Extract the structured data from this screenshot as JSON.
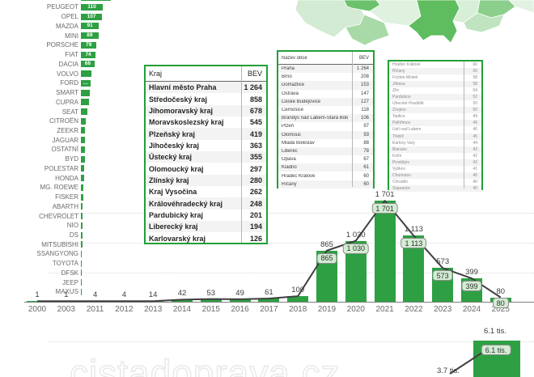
{
  "watermark": "cistadoprava.cz",
  "colors": {
    "bar_green": "#2ea043",
    "badge_bg": "#d3ecd3",
    "line": "#404040",
    "table_border": "#21a038",
    "map": [
      "#d2ebd2",
      "#6cc26c",
      "#dff1df",
      "#a8daa8",
      "#5fbc5f",
      "#d7eed7",
      "#8ccf8c",
      "#bfe4bf",
      "#e2f2e2"
    ]
  },
  "chart_data": [
    {
      "type": "bar",
      "name": "bev-by-brand",
      "orientation": "horizontal",
      "top_row_clipped": true,
      "categories": [
        "",
        "PEUGEOT",
        "OPEL",
        "MAZDA",
        "MINI",
        "PORSCHE",
        "FIAT",
        "DACIA",
        "VOLVO",
        "FORD",
        "SMART",
        "CUPRA",
        "SEAT",
        "CITROËN",
        "ZEEKR",
        "JAGUAR",
        "OSTATNÍ",
        "BYD",
        "POLESTAR",
        "HONDA",
        "MG. ROEWE",
        "FISKER",
        "ABARTH",
        "CHEVROLET",
        "NIO",
        "DS",
        "MITSUBISHI",
        "SSANGYONG",
        "TOYOTA",
        "DFSK",
        "JEEP",
        "MAXUS"
      ],
      "values": [
        150,
        110,
        107,
        91,
        89,
        79,
        74,
        68,
        55,
        48,
        44,
        40,
        32,
        26,
        22,
        21,
        20,
        19,
        17,
        15,
        13,
        11,
        10,
        9,
        8,
        8,
        7,
        6,
        5,
        4,
        4,
        3
      ],
      "displayed_values": [
        "",
        "110",
        "107",
        "91",
        "89",
        "79",
        "74",
        "68",
        "",
        "…",
        "",
        "",
        "",
        "",
        "",
        "",
        "",
        "",
        "",
        "",
        "",
        "",
        "",
        "",
        "",
        "",
        "",
        "",
        "",
        "",
        "",
        ""
      ]
    },
    {
      "type": "table",
      "name": "bev-by-region",
      "headers": [
        "Kraj",
        "BEV"
      ],
      "rows": [
        [
          "Hlavní město Praha",
          "1 264"
        ],
        [
          "Středočeský kraj",
          "858"
        ],
        [
          "Jihomoravský kraj",
          "678"
        ],
        [
          "Moravskoslezský kraj",
          "545"
        ],
        [
          "Plzeňský kraj",
          "419"
        ],
        [
          "Jihočeský kraj",
          "363"
        ],
        [
          "Ústecký kraj",
          "355"
        ],
        [
          "Olomoucký kraj",
          "297"
        ],
        [
          "Zlínský kraj",
          "280"
        ],
        [
          "Kraj Vysočina",
          "262"
        ],
        [
          "Královéhradecký kraj",
          "248"
        ],
        [
          "Pardubický kraj",
          "201"
        ],
        [
          "Liberecký kraj",
          "194"
        ],
        [
          "Karlovarský kraj",
          "126"
        ]
      ]
    },
    {
      "type": "table",
      "name": "bev-by-municipality",
      "headers": [
        "Název obce",
        "BEV"
      ],
      "rows": [
        [
          "Praha",
          "1 264"
        ],
        [
          "Brno",
          "208"
        ],
        [
          "Domažlice",
          "153"
        ],
        [
          "Ostrava",
          "147"
        ],
        [
          "České Budějovice",
          "127"
        ],
        [
          "Černošice",
          "118"
        ],
        [
          "Brandýs nad Labem-Stará Boleslav",
          "106"
        ],
        [
          "Plzeň",
          "97"
        ],
        [
          "Olomouc",
          "93"
        ],
        [
          "Mladá Boleslav",
          "88"
        ],
        [
          "Liberec",
          "78"
        ],
        [
          "Opava",
          "67"
        ],
        [
          "Kladno",
          "61"
        ],
        [
          "Hradec Králové",
          "60"
        ],
        [
          "Říčany",
          "60"
        ]
      ]
    },
    {
      "type": "table",
      "name": "bev-by-municipality-continued",
      "headers": [],
      "rows": [
        [
          "Hradec Králové",
          "60"
        ],
        [
          "Říčany",
          "60"
        ],
        [
          "Frýdek-Místek",
          "58"
        ],
        [
          "Jihlava",
          "58"
        ],
        [
          "Zlín",
          "54"
        ],
        [
          "Pardubice",
          "52"
        ],
        [
          "Uherské Hradiště",
          "50"
        ],
        [
          "Znojmo",
          "50"
        ],
        [
          "Teplice",
          "49"
        ],
        [
          "Pelhřimov",
          "46"
        ],
        [
          "Ústí nad Labem",
          "46"
        ],
        [
          "Třebíč",
          "45"
        ],
        [
          "Karlovy Vary",
          "44"
        ],
        [
          "Blansko",
          "43"
        ],
        [
          "Kolín",
          "42"
        ],
        [
          "Prostějov",
          "42"
        ],
        [
          "Vyškov",
          "41"
        ],
        [
          "Chomutov",
          "40"
        ],
        [
          "Chrudim",
          "40"
        ],
        [
          "Šlapanice",
          "40"
        ]
      ]
    },
    {
      "type": "bar",
      "name": "bev-by-year",
      "has_line_series": true,
      "categories": [
        "2000",
        "2003",
        "2011",
        "2012",
        "2013",
        "2014",
        "2015",
        "2016",
        "2017",
        "2018",
        "2019",
        "2020",
        "2021",
        "2022",
        "2023",
        "2024",
        "2025"
      ],
      "values": [
        1,
        1,
        4,
        4,
        14,
        42,
        53,
        49,
        61,
        100,
        865,
        1030,
        1701,
        1113,
        573,
        399,
        80
      ],
      "value_labels": [
        "1",
        "1",
        "4",
        "4",
        "14",
        "42",
        "53",
        "49",
        "61",
        "100",
        "865",
        "1 030",
        "1 701",
        "1 113",
        "573",
        "399",
        "80"
      ],
      "badge_from_index": 10
    },
    {
      "type": "bar",
      "name": "totals",
      "has_line_series": true,
      "bar_label": "6.1 tis.",
      "line_label": "3.7 tis."
    }
  ],
  "map": {
    "name": "czech-republic-choropleth",
    "clipped": "top"
  }
}
